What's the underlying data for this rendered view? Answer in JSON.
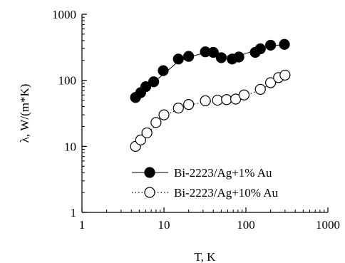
{
  "chart_data": {
    "type": "scatter",
    "xscale": "log",
    "yscale": "log",
    "xlim": [
      1,
      1000
    ],
    "ylim": [
      1,
      1000
    ],
    "xlabel": "T, K",
    "ylabel": "λ, W/(m*K)",
    "x_ticks": [
      {
        "value": 1,
        "label": "1"
      },
      {
        "value": 10,
        "label": "10"
      },
      {
        "value": 100,
        "label": "100"
      },
      {
        "value": 1000,
        "label": "1000"
      }
    ],
    "y_ticks": [
      {
        "value": 1,
        "label": "1"
      },
      {
        "value": 10,
        "label": "10"
      },
      {
        "value": 100,
        "label": "100"
      },
      {
        "value": 1000,
        "label": "1000"
      }
    ],
    "grid": false,
    "legend_position": "bottom-right",
    "series": [
      {
        "name": "Bi-2223/Ag+1% Au",
        "marker": "filled-circle",
        "line": "solid",
        "color": "#000000",
        "points": [
          [
            4.5,
            55
          ],
          [
            5.2,
            65
          ],
          [
            6,
            80
          ],
          [
            7.5,
            95
          ],
          [
            9.8,
            140
          ],
          [
            15,
            210
          ],
          [
            20,
            230
          ],
          [
            32,
            270
          ],
          [
            40,
            265
          ],
          [
            50,
            220
          ],
          [
            68,
            210
          ],
          [
            82,
            225
          ],
          [
            130,
            265
          ],
          [
            150,
            300
          ],
          [
            200,
            340
          ],
          [
            295,
            350
          ]
        ],
        "fit": [
          [
            4.5,
            55
          ],
          [
            6,
            75
          ],
          [
            8,
            100
          ],
          [
            10,
            125
          ],
          [
            14,
            180
          ],
          [
            20,
            225
          ],
          [
            28,
            250
          ],
          [
            38,
            252
          ],
          [
            50,
            240
          ],
          [
            65,
            228
          ],
          [
            80,
            232
          ],
          [
            110,
            265
          ],
          [
            150,
            300
          ],
          [
            200,
            330
          ],
          [
            300,
            350
          ]
        ]
      },
      {
        "name": "Bi-2223/Ag+10% Au",
        "marker": "open-circle",
        "line": "dotted",
        "color": "#000000",
        "points": [
          [
            4.5,
            10
          ],
          [
            5.2,
            12.5
          ],
          [
            6.2,
            16
          ],
          [
            8,
            23
          ],
          [
            10,
            30
          ],
          [
            15,
            38
          ],
          [
            20,
            43
          ],
          [
            32,
            49
          ],
          [
            45,
            50
          ],
          [
            58,
            51
          ],
          [
            75,
            52
          ],
          [
            95,
            60
          ],
          [
            150,
            73
          ],
          [
            200,
            92
          ],
          [
            250,
            110
          ],
          [
            300,
            120
          ]
        ],
        "fit": [
          [
            4.5,
            10
          ],
          [
            5.5,
            13
          ],
          [
            7,
            18
          ],
          [
            9,
            24
          ],
          [
            12,
            32
          ],
          [
            16,
            38
          ],
          [
            22,
            43
          ],
          [
            32,
            47
          ],
          [
            50,
            50
          ],
          [
            75,
            53
          ],
          [
            100,
            59
          ],
          [
            150,
            72
          ],
          [
            200,
            88
          ],
          [
            300,
            120
          ]
        ]
      }
    ]
  }
}
